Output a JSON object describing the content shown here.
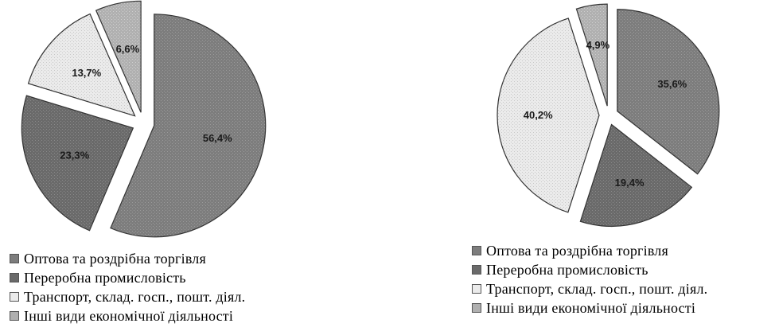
{
  "colors": {
    "wholesale": "#7d7d7d",
    "manufacturing": "#6a6a6a",
    "transport": "#ebebeb",
    "other": "#b0b0b0"
  },
  "chart_data": [
    {
      "type": "pie",
      "title": "",
      "series": [
        {
          "categories": [
            "Оптова та роздрібна торгівля",
            "Переробна промисловість",
            "Транспорт, склад. госп., пошт. діял.",
            "Інші види економічної діяльності"
          ],
          "values": [
            56.4,
            23.3,
            13.7,
            6.6
          ],
          "labels": [
            "56,4%",
            "23,3%",
            "13,7%",
            "6,6%"
          ]
        }
      ],
      "legend": [
        "Оптова та роздрібна торгівля",
        "Переробна промисловість",
        "Транспорт, склад. госп., пошт. діял.",
        "Інші види економічної діяльності"
      ],
      "legend_position": "bottom"
    },
    {
      "type": "pie",
      "title": "",
      "series": [
        {
          "categories": [
            "Оптова та роздрібна торгівля",
            "Переробна промисловість",
            "Транспорт, склад. госп., пошт. діял.",
            "Інші види економічної діяльності"
          ],
          "values": [
            35.6,
            19.4,
            40.2,
            4.9
          ],
          "labels": [
            "35,6%",
            "19,4%",
            "40,2%",
            "4,9%"
          ]
        }
      ],
      "legend": [
        "Оптова та роздрібна торгівля",
        "Переробна промисловість",
        "Транспорт, склад. госп., пошт. діял.",
        "Інші види економічної діяльності"
      ],
      "legend_position": "bottom"
    }
  ]
}
